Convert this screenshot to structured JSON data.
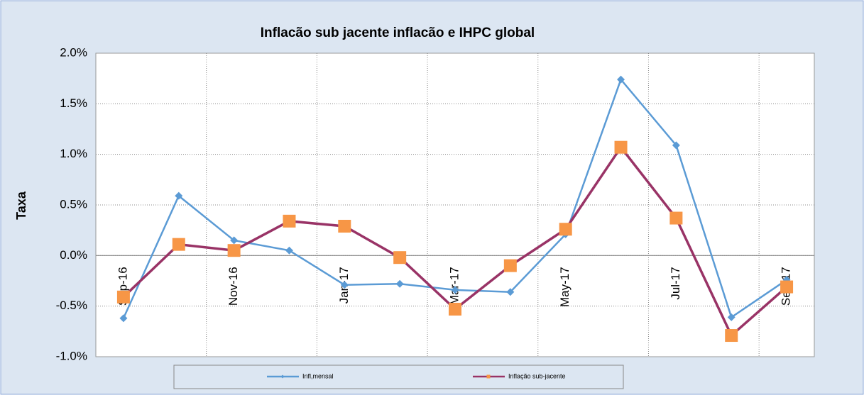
{
  "chart_data": {
    "type": "line",
    "title": "Inflacão sub jacente inflacão e IHPC global",
    "y_label": "Taxa",
    "categories": [
      "Sep-16",
      null,
      "Nov-16",
      null,
      "Jan-17",
      null,
      "Mar-17",
      null,
      "May-17",
      null,
      "Jul-17",
      null,
      "Sep-17"
    ],
    "series": [
      {
        "name": "Infl,mensal",
        "color": "#5b9bd5",
        "marker": "diamond",
        "marker_color": "#5b9bd5",
        "values": [
          -0.62,
          0.59,
          0.15,
          0.05,
          -0.29,
          -0.28,
          -0.34,
          -0.36,
          0.21,
          1.74,
          1.09,
          -0.61,
          -0.24
        ]
      },
      {
        "name": "Inflação sub-jacente",
        "color": "#993366",
        "marker": "square",
        "marker_color": "#f79646",
        "values": [
          -0.41,
          0.11,
          0.05,
          0.34,
          0.29,
          -0.02,
          -0.53,
          -0.1,
          0.26,
          1.07,
          0.37,
          -0.79,
          -0.31
        ]
      }
    ],
    "ylim": [
      -1.0,
      2.0
    ],
    "yticks": [
      {
        "value": -1.0,
        "label": "-1.0%"
      },
      {
        "value": -0.5,
        "label": "-0.5%"
      },
      {
        "value": 0.0,
        "label": "0.0%"
      },
      {
        "value": 0.5,
        "label": "0.5%"
      },
      {
        "value": 1.0,
        "label": "1.0%"
      },
      {
        "value": 1.5,
        "label": "1.5%"
      },
      {
        "value": 2.0,
        "label": "2.0%"
      }
    ],
    "grid": true,
    "legend": "bottom"
  }
}
